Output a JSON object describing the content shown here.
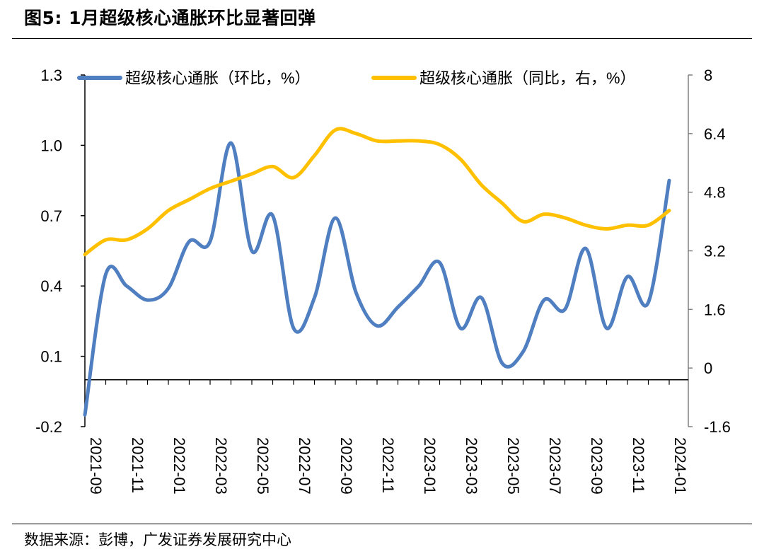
{
  "title": "图5:  1月超级核心通胀环比显著回弹",
  "source": "数据来源：彭博，广发证券发展研究中心",
  "chart_data": {
    "type": "line",
    "x": [
      "2021-09",
      "2021-10",
      "2021-11",
      "2021-12",
      "2022-01",
      "2022-02",
      "2022-03",
      "2022-04",
      "2022-05",
      "2022-06",
      "2022-07",
      "2022-08",
      "2022-09",
      "2022-10",
      "2022-11",
      "2022-12",
      "2023-01",
      "2023-02",
      "2023-03",
      "2023-04",
      "2023-05",
      "2023-06",
      "2023-07",
      "2023-08",
      "2023-09",
      "2023-10",
      "2023-11",
      "2023-12",
      "2024-01"
    ],
    "x_tick_labels": [
      "2021-09",
      "2021-11",
      "2022-01",
      "2022-03",
      "2022-05",
      "2022-07",
      "2022-09",
      "2022-11",
      "2023-01",
      "2023-03",
      "2023-05",
      "2023-07",
      "2023-09",
      "2023-11",
      "2024-01"
    ],
    "series": [
      {
        "name": "超级核心通胀（环比，%）",
        "axis": "left",
        "color": "#4F7FC0",
        "values": [
          -0.15,
          0.45,
          0.4,
          0.34,
          0.39,
          0.59,
          0.59,
          1.01,
          0.55,
          0.7,
          0.22,
          0.35,
          0.69,
          0.37,
          0.23,
          0.31,
          0.4,
          0.5,
          0.22,
          0.35,
          0.07,
          0.12,
          0.34,
          0.3,
          0.56,
          0.22,
          0.44,
          0.33,
          0.85
        ]
      },
      {
        "name": "超级核心通胀（同比，右，%）",
        "axis": "right",
        "color": "#FFC000",
        "values": [
          3.1,
          3.5,
          3.5,
          3.8,
          4.3,
          4.6,
          4.9,
          5.1,
          5.3,
          5.5,
          5.2,
          5.8,
          6.5,
          6.4,
          6.2,
          6.2,
          6.2,
          6.1,
          5.7,
          5.0,
          4.5,
          4.0,
          4.2,
          4.1,
          3.9,
          3.8,
          3.9,
          3.9,
          4.3
        ]
      }
    ],
    "left_axis": {
      "min": -0.2,
      "max": 1.3,
      "ticks": [
        "1.3",
        "1.0",
        "0.7",
        "0.4",
        "0.1",
        "-0.2"
      ]
    },
    "right_axis": {
      "min": -1.6,
      "max": 8,
      "ticks": [
        "8",
        "6.4",
        "4.8",
        "3.2",
        "1.6",
        "0",
        "-1.6"
      ]
    },
    "grid": false,
    "legend_position": "top"
  }
}
